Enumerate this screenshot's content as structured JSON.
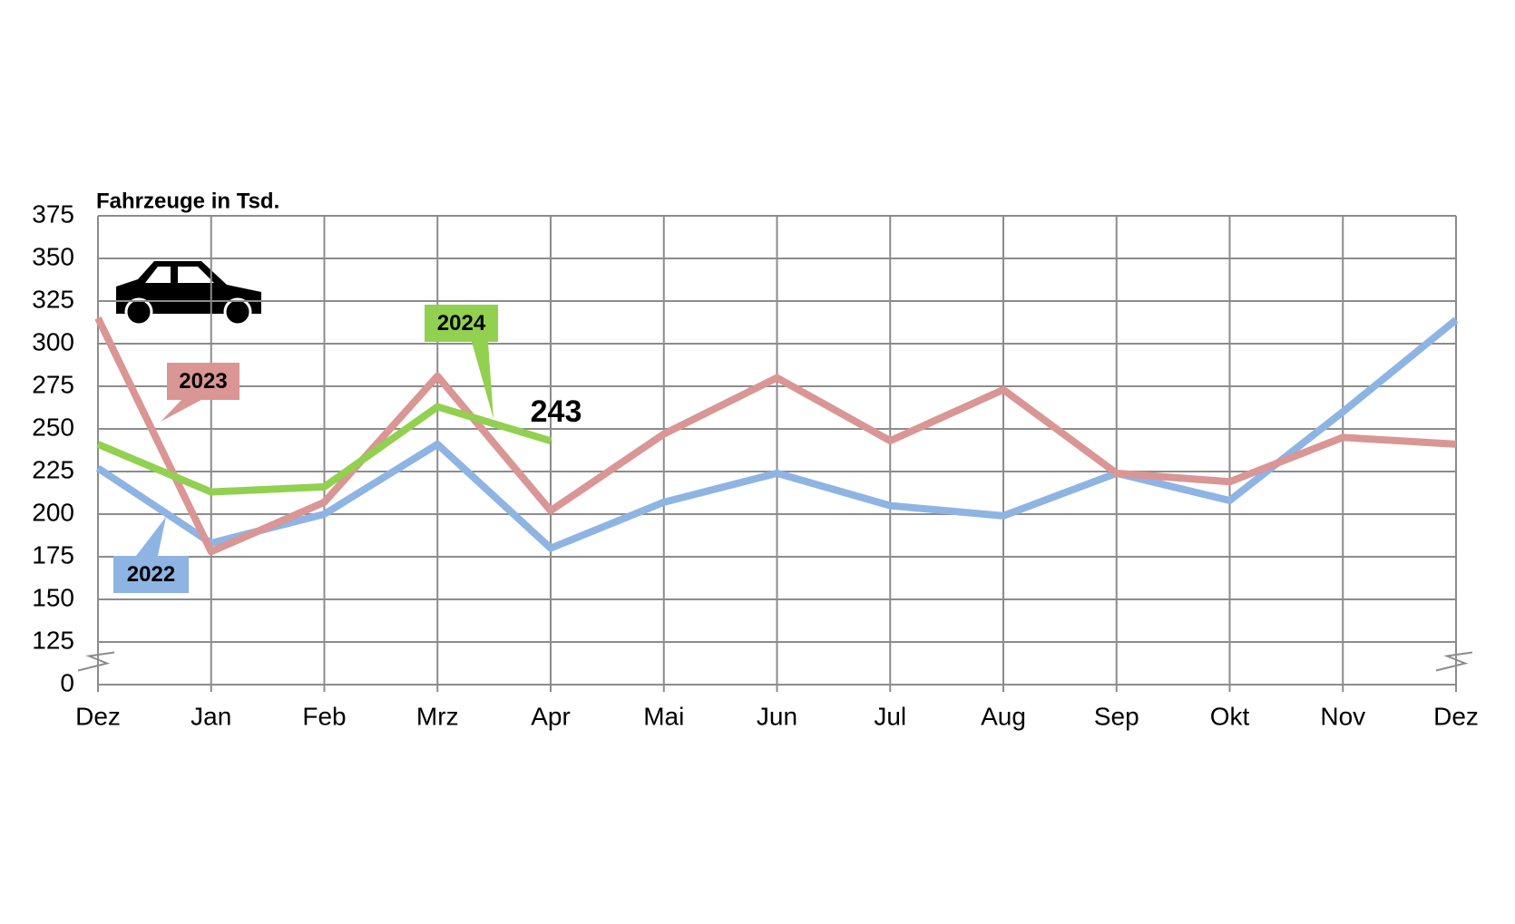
{
  "chart_data": {
    "type": "line",
    "y_axis_label": "Fahrzeuge in Tsd.",
    "categories": [
      "Dez",
      "Jan",
      "Feb",
      "Mrz",
      "Apr",
      "Mai",
      "Jun",
      "Jul",
      "Aug",
      "Sep",
      "Okt",
      "Nov",
      "Dez"
    ],
    "series": [
      {
        "name": "2022",
        "color": "#8eb4e3",
        "values": [
          227,
          183,
          200,
          241,
          180,
          207,
          224,
          205,
          199,
          224,
          208,
          260,
          314
        ]
      },
      {
        "name": "2023",
        "color": "#d99694",
        "values": [
          315,
          178,
          207,
          281,
          202,
          247,
          280,
          243,
          273,
          224,
          219,
          245,
          241
        ]
      },
      {
        "name": "2024",
        "color": "#92d050",
        "values": [
          241,
          213,
          216,
          263,
          243,
          null,
          null,
          null,
          null,
          null,
          null,
          null,
          null
        ],
        "show_last_value": true
      }
    ],
    "ylim": [
      0,
      375
    ],
    "yticks": [
      0,
      125,
      150,
      175,
      200,
      225,
      250,
      275,
      300,
      325,
      350,
      375
    ],
    "axis_break": true,
    "grid": true
  }
}
